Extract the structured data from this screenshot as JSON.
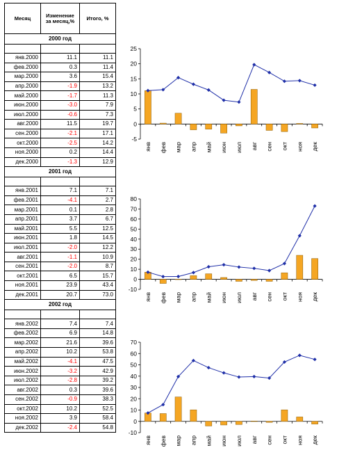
{
  "table": {
    "headers": [
      "Месяц",
      "Изменение за месяц,%",
      "Итого, %"
    ],
    "blocks": [
      {
        "year_label": "2000 год",
        "rows": [
          [
            "янв.2000",
            "11.1",
            "11.1"
          ],
          [
            "фев.2000",
            "0.3",
            "11.4"
          ],
          [
            "мар.2000",
            "3.6",
            "15.4"
          ],
          [
            "апр.2000",
            "-1.9",
            "13.2"
          ],
          [
            "май.2000",
            "-1.7",
            "11.3"
          ],
          [
            "июн.2000",
            "-3.0",
            "7.9"
          ],
          [
            "июл.2000",
            "-0.6",
            "7.3"
          ],
          [
            "авг.2000",
            "11.5",
            "19.7"
          ],
          [
            "сен.2000",
            "-2.1",
            "17.1"
          ],
          [
            "окт.2000",
            "-2.5",
            "14.2"
          ],
          [
            "ноя.2000",
            "0.2",
            "14.4"
          ],
          [
            "дек.2000",
            "-1.3",
            "12.9"
          ]
        ]
      },
      {
        "year_label": "2001 год",
        "rows": [
          [
            "янв.2001",
            "7.1",
            "7.1"
          ],
          [
            "фев.2001",
            "-4.1",
            "2.7"
          ],
          [
            "мар.2001",
            "0.1",
            "2.8"
          ],
          [
            "апр.2001",
            "3.7",
            "6.7"
          ],
          [
            "май.2001",
            "5.5",
            "12.5"
          ],
          [
            "июн.2001",
            "1.8",
            "14.5"
          ],
          [
            "июл.2001",
            "-2.0",
            "12.2"
          ],
          [
            "авг.2001",
            "-1.1",
            "10.9"
          ],
          [
            "сен.2001",
            "-2.0",
            "8.7"
          ],
          [
            "окт.2001",
            "6.5",
            "15.7"
          ],
          [
            "ноя.2001",
            "23.9",
            "43.4"
          ],
          [
            "дек.2001",
            "20.7",
            "73.0"
          ]
        ]
      },
      {
        "year_label": "2002 год",
        "rows": [
          [
            "янв.2002",
            "7.4",
            "7.4"
          ],
          [
            "фев.2002",
            "6.9",
            "14.8"
          ],
          [
            "мар.2002",
            "21.6",
            "39.6"
          ],
          [
            "апр.2002",
            "10.2",
            "53.8"
          ],
          [
            "май.2002",
            "-4.1",
            "47.5"
          ],
          [
            "июн.2002",
            "-3.2",
            "42.9"
          ],
          [
            "июл.2002",
            "-2.8",
            "39.2"
          ],
          [
            "авг.2002",
            "0.3",
            "39.6"
          ],
          [
            "сен.2002",
            "-0.9",
            "38.3"
          ],
          [
            "окт.2002",
            "10.2",
            "52.5"
          ],
          [
            "ноя.2002",
            "3.9",
            "58.4"
          ],
          [
            "дек.2002",
            "-2.4",
            "54.8"
          ]
        ]
      }
    ]
  },
  "colors": {
    "bar": "#f5a623",
    "bar_stroke": "#8a5a00",
    "line": "#1f2fa8",
    "negative_text": "#ff0000"
  },
  "chart_data": [
    {
      "type": "bar+line",
      "categories": [
        "янв",
        "фев",
        "мар",
        "апр",
        "май",
        "июн",
        "июл",
        "авг",
        "сен",
        "окт",
        "ноя",
        "дек"
      ],
      "series": [
        {
          "type": "bar",
          "values": [
            11.1,
            0.3,
            3.6,
            -1.9,
            -1.7,
            -3.0,
            -0.6,
            11.5,
            -2.1,
            -2.5,
            0.2,
            -1.3
          ]
        },
        {
          "type": "line",
          "values": [
            11.1,
            11.4,
            15.4,
            13.2,
            11.3,
            7.9,
            7.3,
            19.7,
            17.1,
            14.2,
            14.4,
            12.9
          ]
        }
      ],
      "ylim": [
        -5,
        25
      ],
      "yticks": [
        -5,
        0,
        5,
        10,
        15,
        20,
        25
      ],
      "ytick_labels": [
        "-5",
        "0",
        "5",
        "10",
        "15",
        "20",
        "25"
      ]
    },
    {
      "type": "bar+line",
      "categories": [
        "янв",
        "фев",
        "мар",
        "апр",
        "май",
        "июн",
        "июл",
        "авг",
        "сен",
        "окт",
        "ноя",
        "дек"
      ],
      "series": [
        {
          "type": "bar",
          "values": [
            7.1,
            -4.1,
            0.1,
            3.7,
            5.5,
            1.8,
            -2.0,
            -1.1,
            -2.0,
            6.5,
            23.9,
            20.7
          ]
        },
        {
          "type": "line",
          "values": [
            7.1,
            2.7,
            2.8,
            6.7,
            12.5,
            14.5,
            12.2,
            10.9,
            8.7,
            15.7,
            43.4,
            73.0
          ]
        }
      ],
      "ylim": [
        -10,
        80
      ],
      "yticks": [
        -10,
        0,
        10,
        20,
        30,
        40,
        50,
        60,
        70,
        80
      ],
      "ytick_labels": [
        "-10",
        "0",
        "10",
        "20",
        "30",
        "40",
        "50",
        "60",
        "70",
        "80"
      ]
    },
    {
      "type": "bar+line",
      "categories": [
        "янв",
        "фев",
        "мар",
        "апр",
        "май",
        "июн",
        "июл",
        "авг",
        "сен",
        "окт",
        "ноя",
        "дек"
      ],
      "series": [
        {
          "type": "bar",
          "values": [
            7.4,
            6.9,
            21.6,
            10.2,
            -4.1,
            -3.2,
            -2.8,
            0.3,
            -0.9,
            10.2,
            3.9,
            -2.4
          ]
        },
        {
          "type": "line",
          "values": [
            7.4,
            14.8,
            39.6,
            53.8,
            47.5,
            42.9,
            39.2,
            39.6,
            38.3,
            52.5,
            58.4,
            54.8
          ]
        }
      ],
      "ylim": [
        -10,
        70
      ],
      "yticks": [
        -10,
        0,
        10,
        20,
        30,
        40,
        50,
        60,
        70
      ],
      "ytick_labels": [
        "-10",
        "0",
        "10",
        "20",
        "30",
        "40",
        "50",
        "60",
        "70"
      ]
    }
  ]
}
